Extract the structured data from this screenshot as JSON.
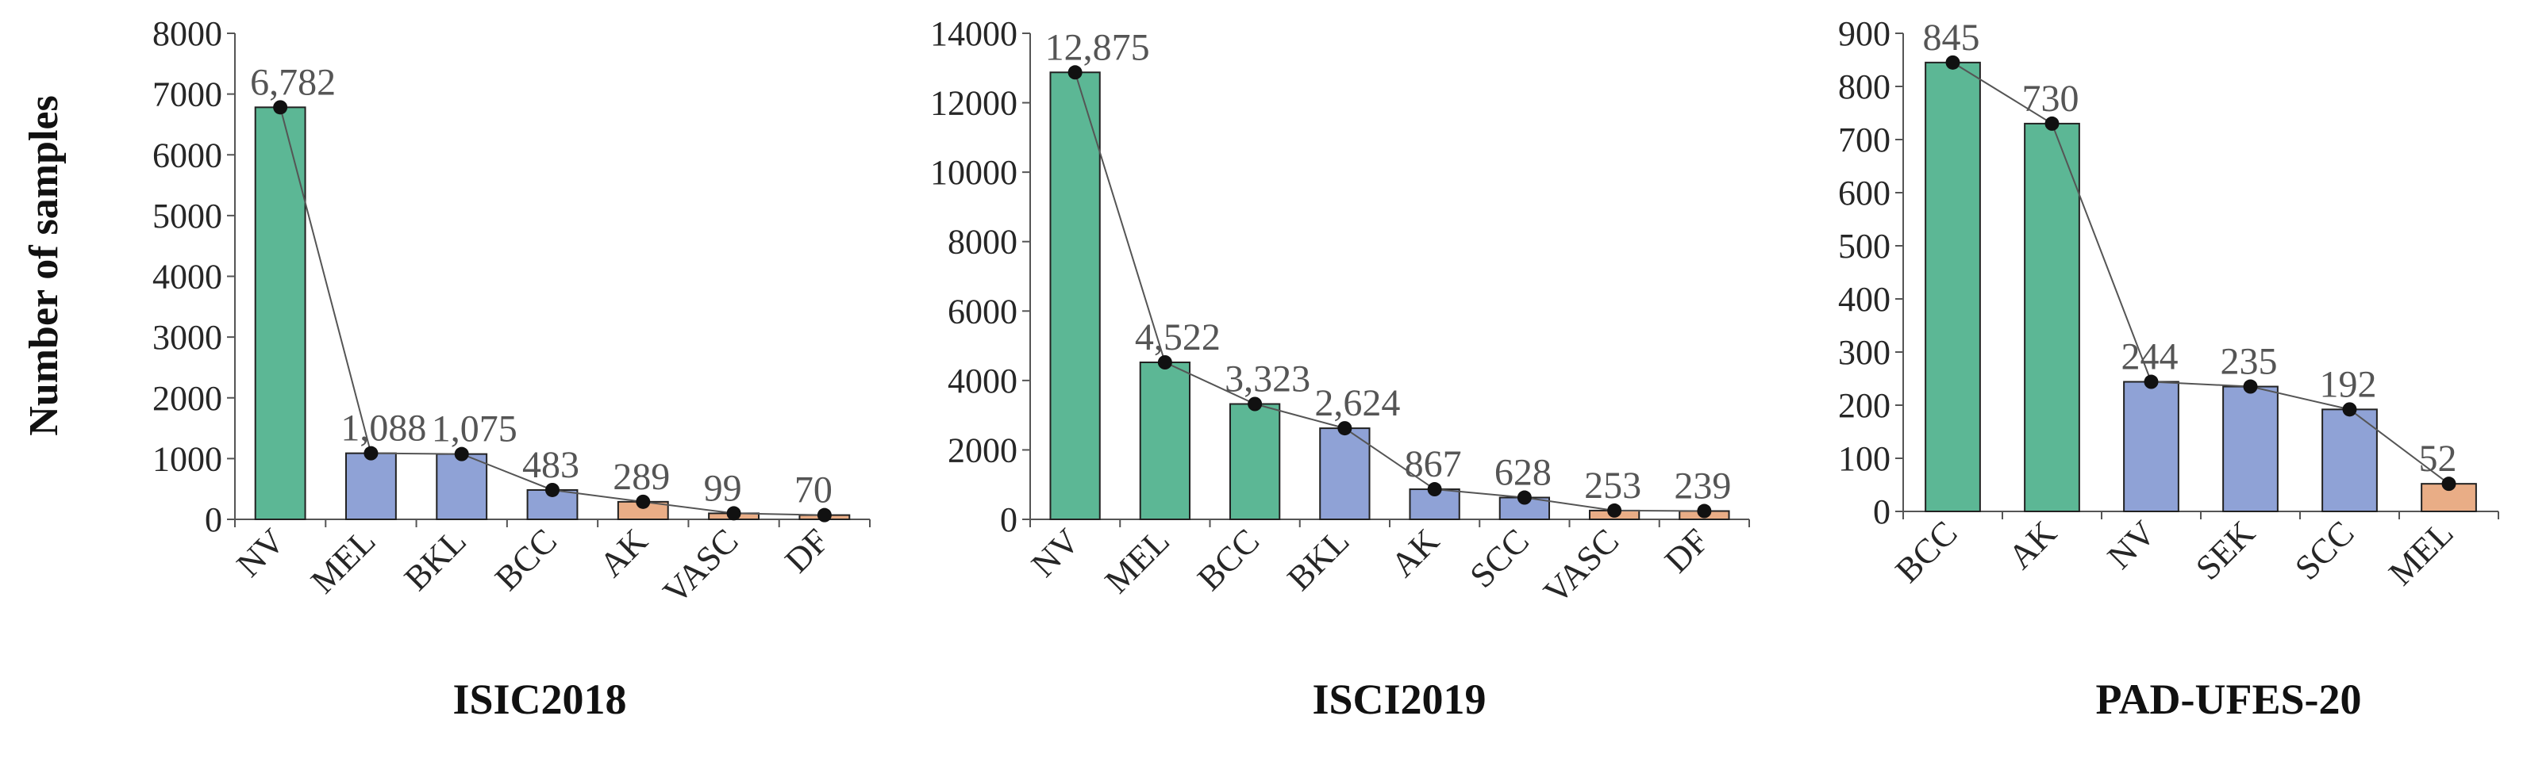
{
  "colors": {
    "green": "#5cb795",
    "blue": "#8fa2d6",
    "orange": "#e9ad86",
    "marker": "#111111"
  },
  "ylabel": "Number of samples",
  "chart_data": [
    {
      "type": "bar",
      "title": "ISIC2018",
      "categories": [
        "NV",
        "MEL",
        "BKL",
        "BCC",
        "AK",
        "VASC",
        "DF"
      ],
      "values": [
        6782,
        1088,
        1075,
        483,
        289,
        99,
        70
      ],
      "value_labels": [
        "6,782",
        "1,088",
        "1,075",
        "483",
        "289",
        "99",
        "70"
      ],
      "bar_colors": [
        "green",
        "blue",
        "blue",
        "blue",
        "orange",
        "orange",
        "orange"
      ],
      "ylim": [
        0,
        8000
      ],
      "yticks": [
        0,
        1000,
        2000,
        3000,
        4000,
        5000,
        6000,
        7000,
        8000
      ],
      "ytick_labels": [
        "0",
        "1000",
        "2000",
        "3000",
        "4000",
        "5000",
        "6000",
        "7000",
        "8000"
      ],
      "ylabel": "Number of samples",
      "trend_line": true,
      "grid": false
    },
    {
      "type": "bar",
      "title": "ISCI2019",
      "categories": [
        "NV",
        "MEL",
        "BCC",
        "BKL",
        "AK",
        "SCC",
        "VASC",
        "DF"
      ],
      "values": [
        12875,
        4522,
        3323,
        2624,
        867,
        628,
        253,
        239
      ],
      "value_labels": [
        "12,875",
        "4,522",
        "3,323",
        "2,624",
        "867",
        "628",
        "253",
        "239"
      ],
      "bar_colors": [
        "green",
        "green",
        "green",
        "blue",
        "blue",
        "blue",
        "orange",
        "orange"
      ],
      "ylim": [
        0,
        14000
      ],
      "yticks": [
        0,
        2000,
        4000,
        6000,
        8000,
        10000,
        12000,
        14000
      ],
      "ytick_labels": [
        "0",
        "2000",
        "4000",
        "6000",
        "8000",
        "10000",
        "12000",
        "14000"
      ],
      "trend_line": true,
      "grid": false
    },
    {
      "type": "bar",
      "title": "PAD-UFES-20",
      "categories": [
        "BCC",
        "AK",
        "NV",
        "SEK",
        "SCC",
        "MEL"
      ],
      "values": [
        845,
        730,
        244,
        235,
        192,
        52
      ],
      "value_labels": [
        "845",
        "730",
        "244",
        "235",
        "192",
        "52"
      ],
      "bar_colors": [
        "green",
        "green",
        "blue",
        "blue",
        "blue",
        "orange"
      ],
      "ylim": [
        0,
        900
      ],
      "yticks": [
        0,
        100,
        200,
        300,
        400,
        500,
        600,
        700,
        800,
        900
      ],
      "ytick_labels": [
        "0",
        "100",
        "200",
        "300",
        "400",
        "500",
        "600",
        "700",
        "800",
        "900"
      ],
      "trend_line": true,
      "grid": false
    }
  ]
}
